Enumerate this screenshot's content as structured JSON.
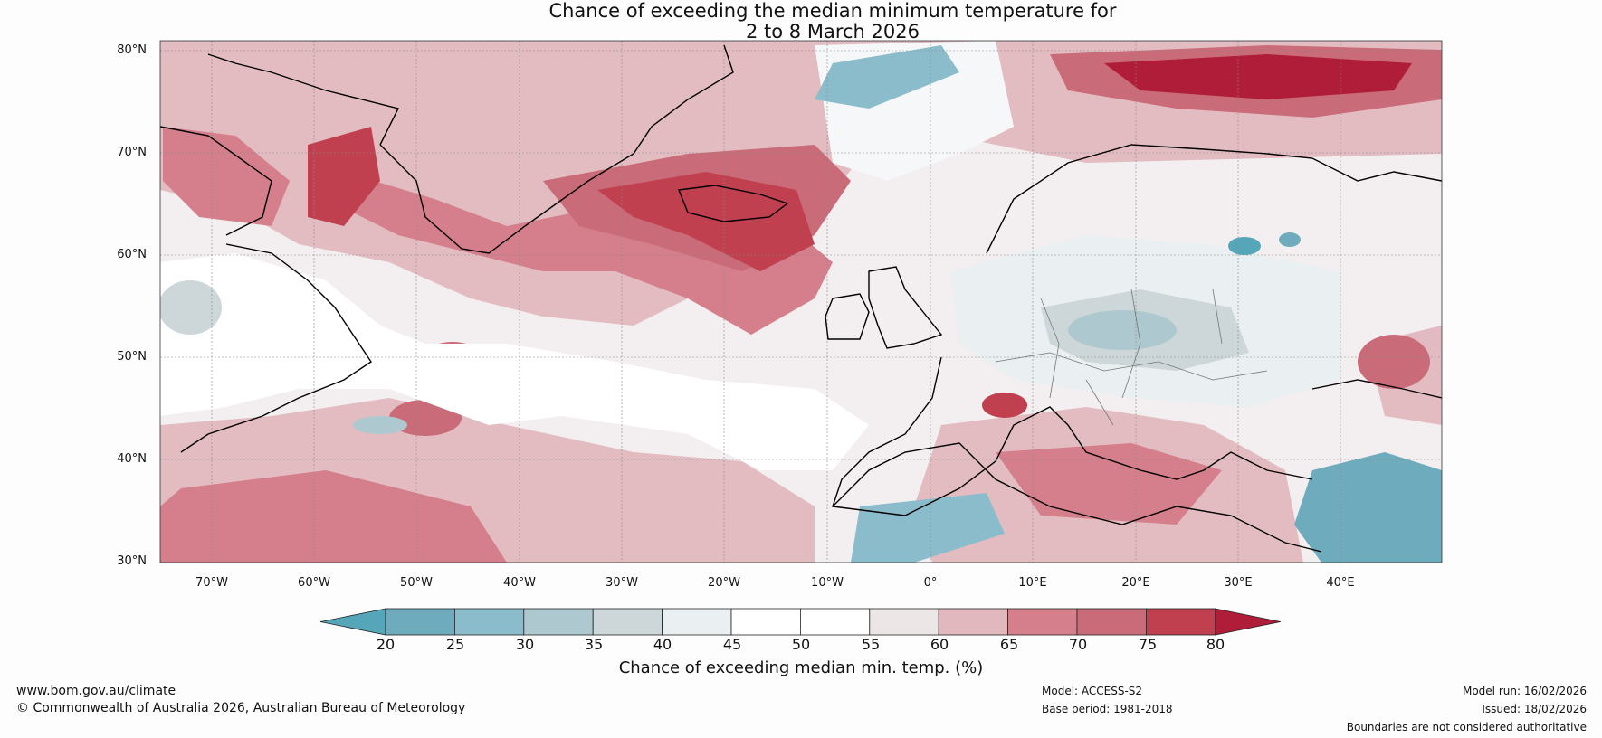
{
  "title": {
    "line1": "Chance of exceeding the median minimum temperature for",
    "line2": "2 to 8 March 2026"
  },
  "map": {
    "lat_labels": [
      "80°N",
      "70°N",
      "60°N",
      "50°N",
      "40°N",
      "30°N"
    ],
    "lon_labels": [
      "70°W",
      "60°W",
      "50°W",
      "40°W",
      "30°W",
      "20°W",
      "10°W",
      "0°",
      "10°E",
      "20°E",
      "30°E",
      "40°E"
    ],
    "lat_range": [
      30,
      81
    ],
    "lon_range": [
      -75,
      50
    ]
  },
  "colorbar": {
    "ticks": [
      "20",
      "25",
      "30",
      "35",
      "40",
      "45",
      "50",
      "55",
      "60",
      "65",
      "70",
      "75",
      "80"
    ],
    "colors": [
      "#56a6ba",
      "#6eacbd",
      "#8bbccb",
      "#adc9cf",
      "#cdd7da",
      "#eaeff1",
      "#ffffff",
      "#ffffff",
      "#ece6e7",
      "#e2b8bf",
      "#d47f8b",
      "#c96b78",
      "#c0404f",
      "#b01d38"
    ],
    "label": "Chance of exceeding median min. temp. (%)"
  },
  "footer": {
    "website": "www.bom.gov.au/climate",
    "copyright": "© Commonwealth of Australia 2026, Australian Bureau of Meteorology",
    "model": "Model: ACCESS-S2",
    "base_period": "Base period: 1981-2018",
    "model_run": "Model run: 16/02/2026",
    "issued": "Issued: 18/02/2026",
    "disclaimer": "Boundaries are not considered authoritative"
  }
}
